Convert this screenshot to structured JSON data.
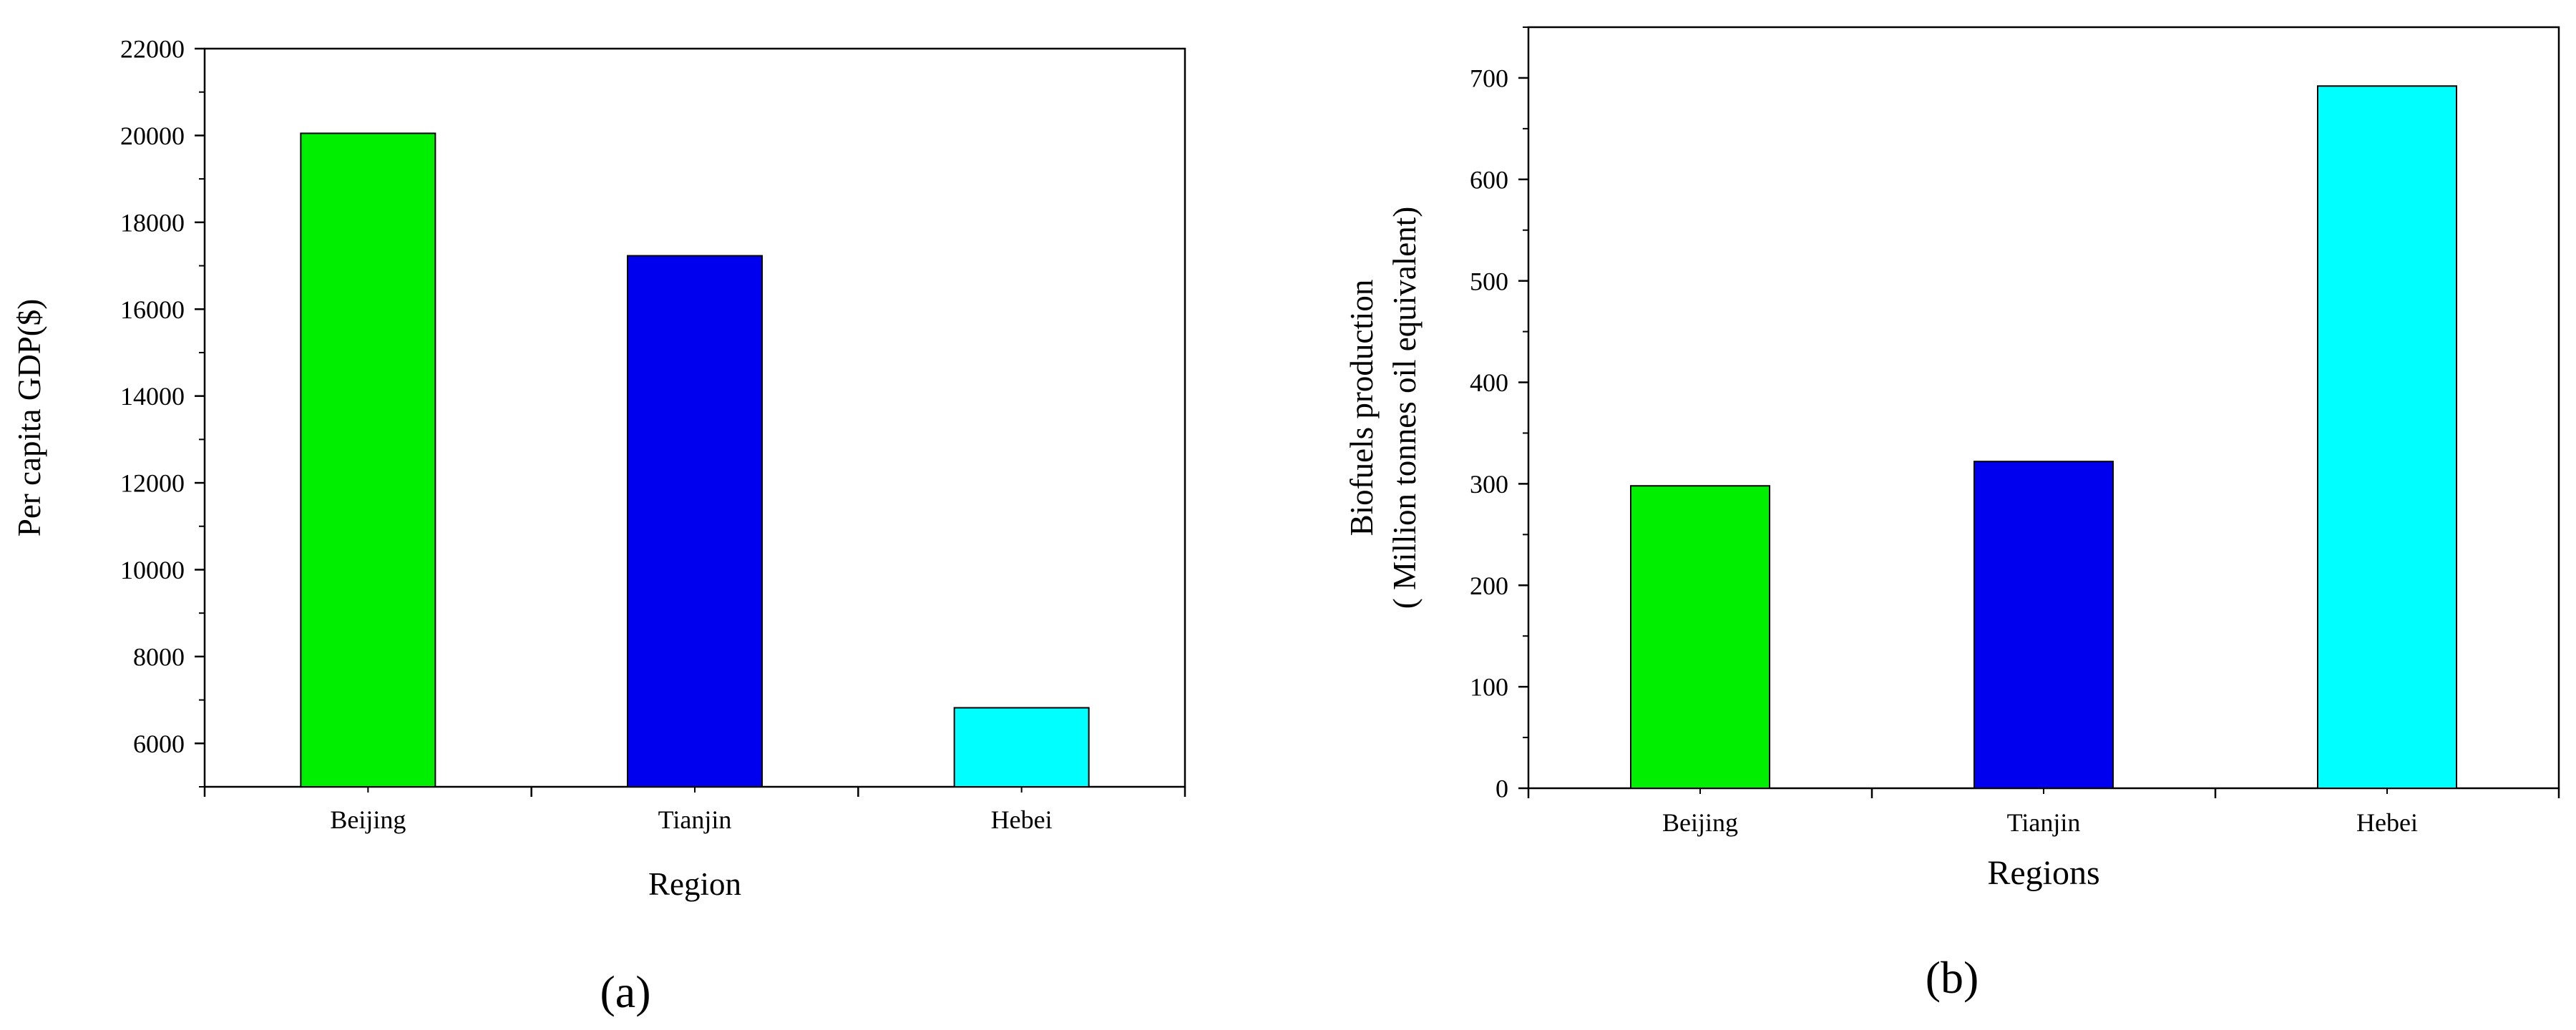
{
  "panels": [
    {
      "label": "(a)",
      "chart_data": {
        "type": "bar",
        "categories": [
          "Beijing",
          "Tianjin",
          "Hebei"
        ],
        "values": [
          20050,
          17230,
          6820
        ],
        "colors": [
          "#00ee00",
          "#0000ee",
          "#00ffff"
        ],
        "title": "",
        "xlabel": "Region",
        "ylabel": "Per capita GDP($)",
        "ylim": [
          5000,
          22000
        ],
        "yticks": [
          6000,
          8000,
          10000,
          12000,
          14000,
          16000,
          18000,
          20000,
          22000
        ],
        "ytick_labels": [
          "6000",
          "8000",
          "10000",
          "12000",
          "14000",
          "16000",
          "18000",
          "20000",
          "22000"
        ],
        "grid": false,
        "legend": "none"
      }
    },
    {
      "label": "(b)",
      "chart_data": {
        "type": "bar",
        "categories": [
          "Beijing",
          "Tianjin",
          "Hebei"
        ],
        "values": [
          298,
          322,
          692
        ],
        "colors": [
          "#00ee00",
          "#0000ee",
          "#00ffff"
        ],
        "title": "",
        "xlabel": "Regions",
        "ylabel": "Biofuels production",
        "ylabel2": "( Million tonnes oil equivalent)",
        "ylim": [
          0,
          750
        ],
        "yticks": [
          0,
          100,
          200,
          300,
          400,
          500,
          600,
          700
        ],
        "ytick_labels": [
          "0",
          "100",
          "200",
          "300",
          "400",
          "500",
          "600",
          "700"
        ],
        "grid": false,
        "legend": "none"
      }
    }
  ]
}
